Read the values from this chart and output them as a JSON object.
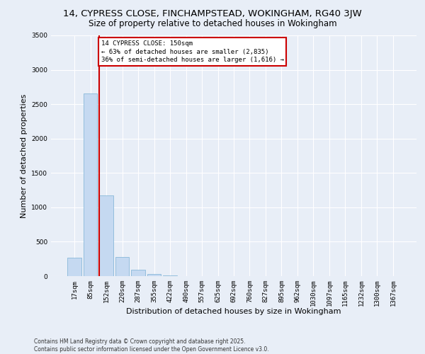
{
  "title": "14, CYPRESS CLOSE, FINCHAMPSTEAD, WOKINGHAM, RG40 3JW",
  "subtitle": "Size of property relative to detached houses in Wokingham",
  "xlabel": "Distribution of detached houses by size in Wokingham",
  "ylabel": "Number of detached properties",
  "categories": [
    "17sqm",
    "85sqm",
    "152sqm",
    "220sqm",
    "287sqm",
    "355sqm",
    "422sqm",
    "490sqm",
    "557sqm",
    "625sqm",
    "692sqm",
    "760sqm",
    "827sqm",
    "895sqm",
    "962sqm",
    "1030sqm",
    "1097sqm",
    "1165sqm",
    "1232sqm",
    "1300sqm",
    "1367sqm"
  ],
  "values": [
    270,
    2660,
    1170,
    280,
    90,
    35,
    10,
    0,
    0,
    0,
    0,
    0,
    0,
    0,
    0,
    0,
    0,
    0,
    0,
    0,
    0
  ],
  "bar_color": "#c5d9f1",
  "bar_edge_color": "#7ab0d4",
  "vline_color": "#cc0000",
  "annotation_line1": "14 CYPRESS CLOSE: 150sqm",
  "annotation_line2": "← 63% of detached houses are smaller (2,835)",
  "annotation_line3": "36% of semi-detached houses are larger (1,616) →",
  "annotation_box_color": "#cc0000",
  "ylim": [
    0,
    3500
  ],
  "yticks": [
    0,
    500,
    1000,
    1500,
    2000,
    2500,
    3000,
    3500
  ],
  "background_color": "#e8eef7",
  "grid_color": "#ffffff",
  "footer_line1": "Contains HM Land Registry data © Crown copyright and database right 2025.",
  "footer_line2": "Contains public sector information licensed under the Open Government Licence v3.0.",
  "title_fontsize": 9.5,
  "subtitle_fontsize": 8.5,
  "xlabel_fontsize": 8,
  "ylabel_fontsize": 8,
  "tick_fontsize": 6.5,
  "annotation_fontsize": 6.5,
  "footer_fontsize": 5.5
}
